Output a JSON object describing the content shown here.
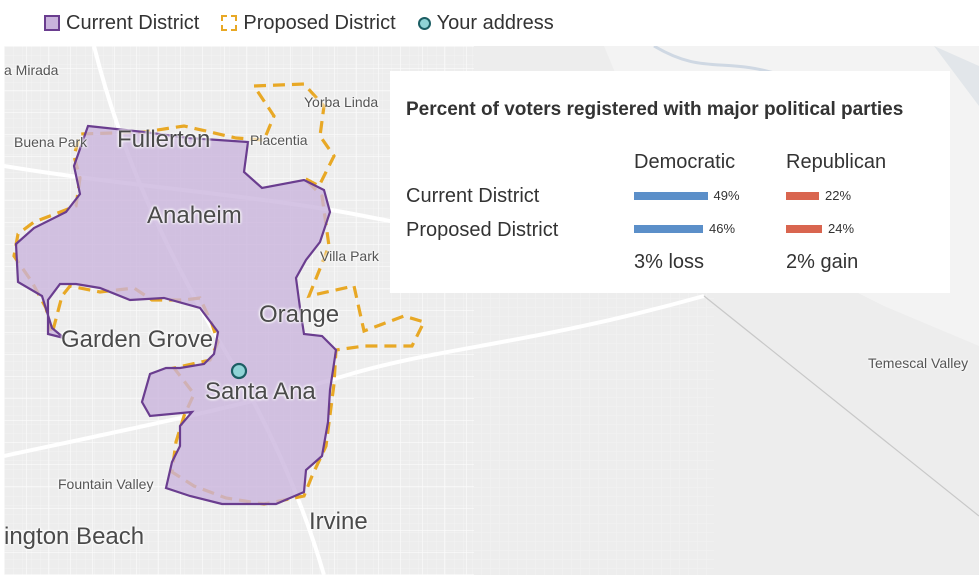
{
  "legend": {
    "current": "Current District",
    "proposed": "Proposed District",
    "address": "Your address"
  },
  "map": {
    "cities_major": [
      "Fullerton",
      "Anaheim",
      "Orange",
      "Garden Grove",
      "Santa Ana",
      "Irvine",
      "ington Beach"
    ],
    "cities_minor": [
      "a Mirada",
      "Yorba Linda",
      "Buena Park",
      "Placentia",
      "Villa Park",
      "Fountain Valley",
      "Temescal Valley"
    ],
    "colors": {
      "current_fill": "#c9b3dc",
      "current_stroke": "#6a3d8f",
      "proposed_stroke": "#e8a825",
      "address": "#8fd3d6"
    }
  },
  "panel": {
    "title": "Percent of voters registered with major political parties",
    "col_dem": "Democratic",
    "col_rep": "Republican",
    "rows": [
      {
        "label": "Current District",
        "dem_pct": 49,
        "dem_label": "49%",
        "rep_pct": 22,
        "rep_label": "22%"
      },
      {
        "label": "Proposed District",
        "dem_pct": 46,
        "dem_label": "46%",
        "rep_pct": 24,
        "rep_label": "24%"
      }
    ],
    "dem_change": "3% loss",
    "rep_change": "2% gain"
  }
}
